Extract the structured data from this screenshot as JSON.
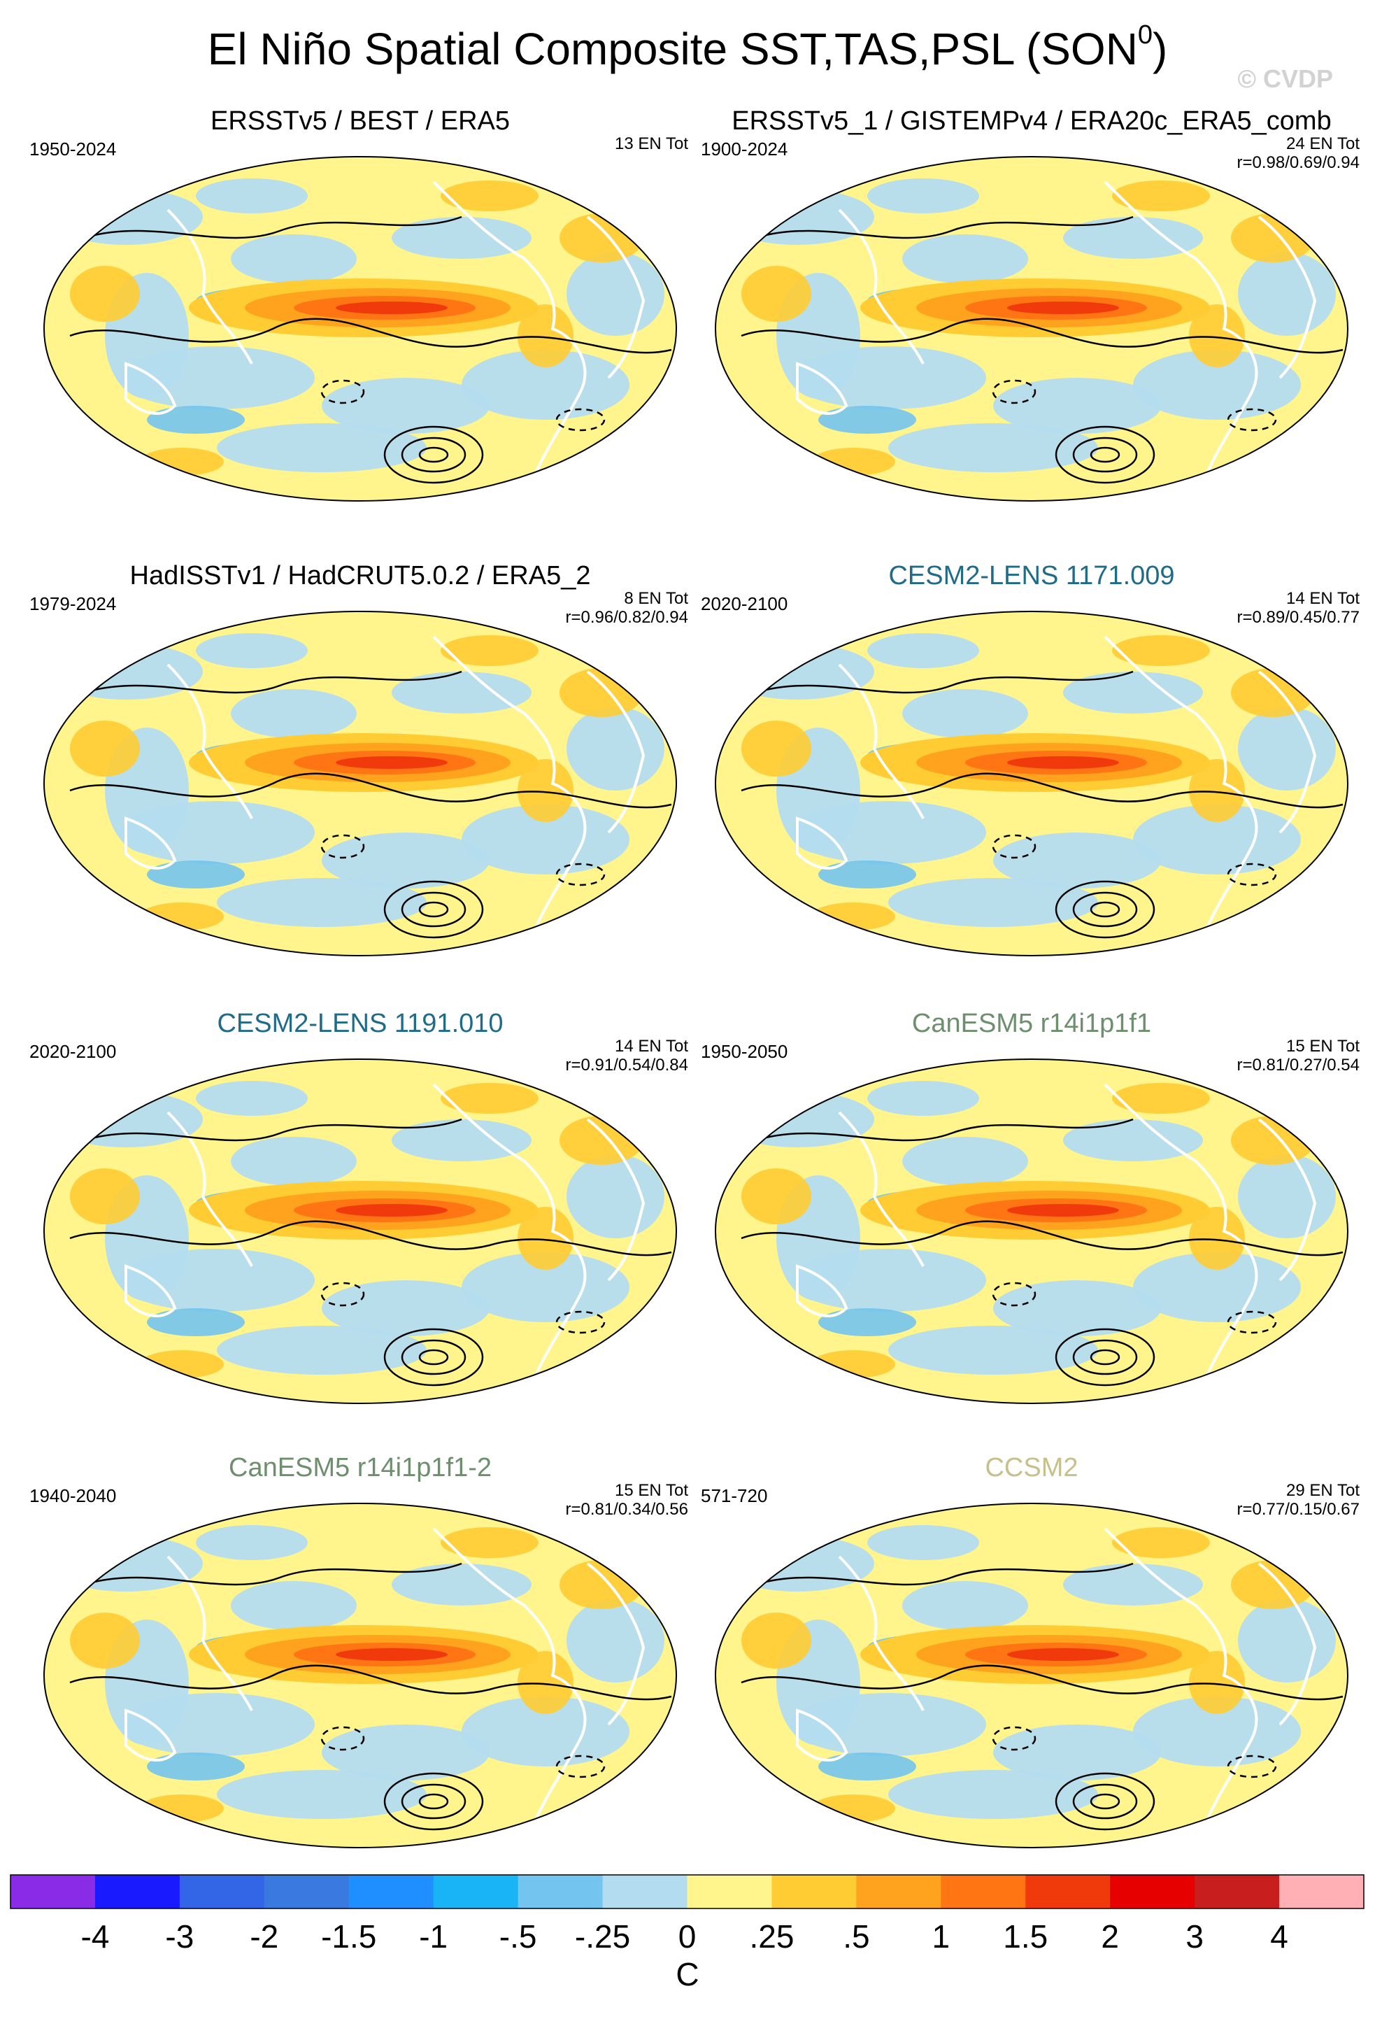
{
  "figure": {
    "title": "El Niño Spatial Composite SST,TAS,PSL (SON",
    "title_sup": "0",
    "title_close": ")",
    "credit": "© CVDP"
  },
  "chart_data": {
    "type": "heatmap",
    "description_units": "C",
    "colorbar": {
      "ticks": [
        "-4",
        "-3",
        "-2",
        "-1.5",
        "-1",
        "-.5",
        "-.25",
        "0",
        ".25",
        ".5",
        "1",
        "1.5",
        "2",
        "3",
        "4"
      ],
      "label": "C",
      "colors": [
        "#8a2be8",
        "#1a1aff",
        "#3366e6",
        "#3a7ae0",
        "#1f8fff",
        "#18b4f5",
        "#73c4ee",
        "#b4dcf0",
        "#fff58c",
        "#ffcc33",
        "#ffa21e",
        "#ff7514",
        "#f03a0c",
        "#e60000",
        "#c81e1e",
        "#ffb0b4"
      ]
    },
    "panels": [
      {
        "title": "ERSSTv5 / BEST / ERA5",
        "title_color": "#000000",
        "years": "1950-2024",
        "count": "13 EN Tot",
        "corr": ""
      },
      {
        "title": "ERSSTv5_1 / GISTEMPv4 / ERA20c_ERA5_comb",
        "title_color": "#000000",
        "years": "1900-2024",
        "count": "24 EN Tot",
        "corr": "r=0.98/0.69/0.94"
      },
      {
        "title": "HadISSTv1 / HadCRUT5.0.2 / ERA5_2",
        "title_color": "#000000",
        "years": "1979-2024",
        "count": "8 EN Tot",
        "corr": "r=0.96/0.82/0.94"
      },
      {
        "title": "CESM2-LENS 1171.009",
        "title_color": "#1f6b8a",
        "years": "2020-2100",
        "count": "14 EN Tot",
        "corr": "r=0.89/0.45/0.77"
      },
      {
        "title": "CESM2-LENS 1191.010",
        "title_color": "#1f6b8a",
        "years": "2020-2100",
        "count": "14 EN Tot",
        "corr": "r=0.91/0.54/0.84"
      },
      {
        "title": "CanESM5 r14i1p1f1",
        "title_color": "#6e8f6e",
        "years": "1950-2050",
        "count": "15 EN Tot",
        "corr": "r=0.81/0.27/0.54"
      },
      {
        "title": "CanESM5 r14i1p1f1-2",
        "title_color": "#6e8f6e",
        "years": "1940-2040",
        "count": "15 EN Tot",
        "corr": "r=0.81/0.34/0.56"
      },
      {
        "title": "CCSM2",
        "title_color": "#c8c08a",
        "years": "571-720",
        "count": "29 EN Tot",
        "corr": "r=0.77/0.15/0.67"
      }
    ]
  }
}
